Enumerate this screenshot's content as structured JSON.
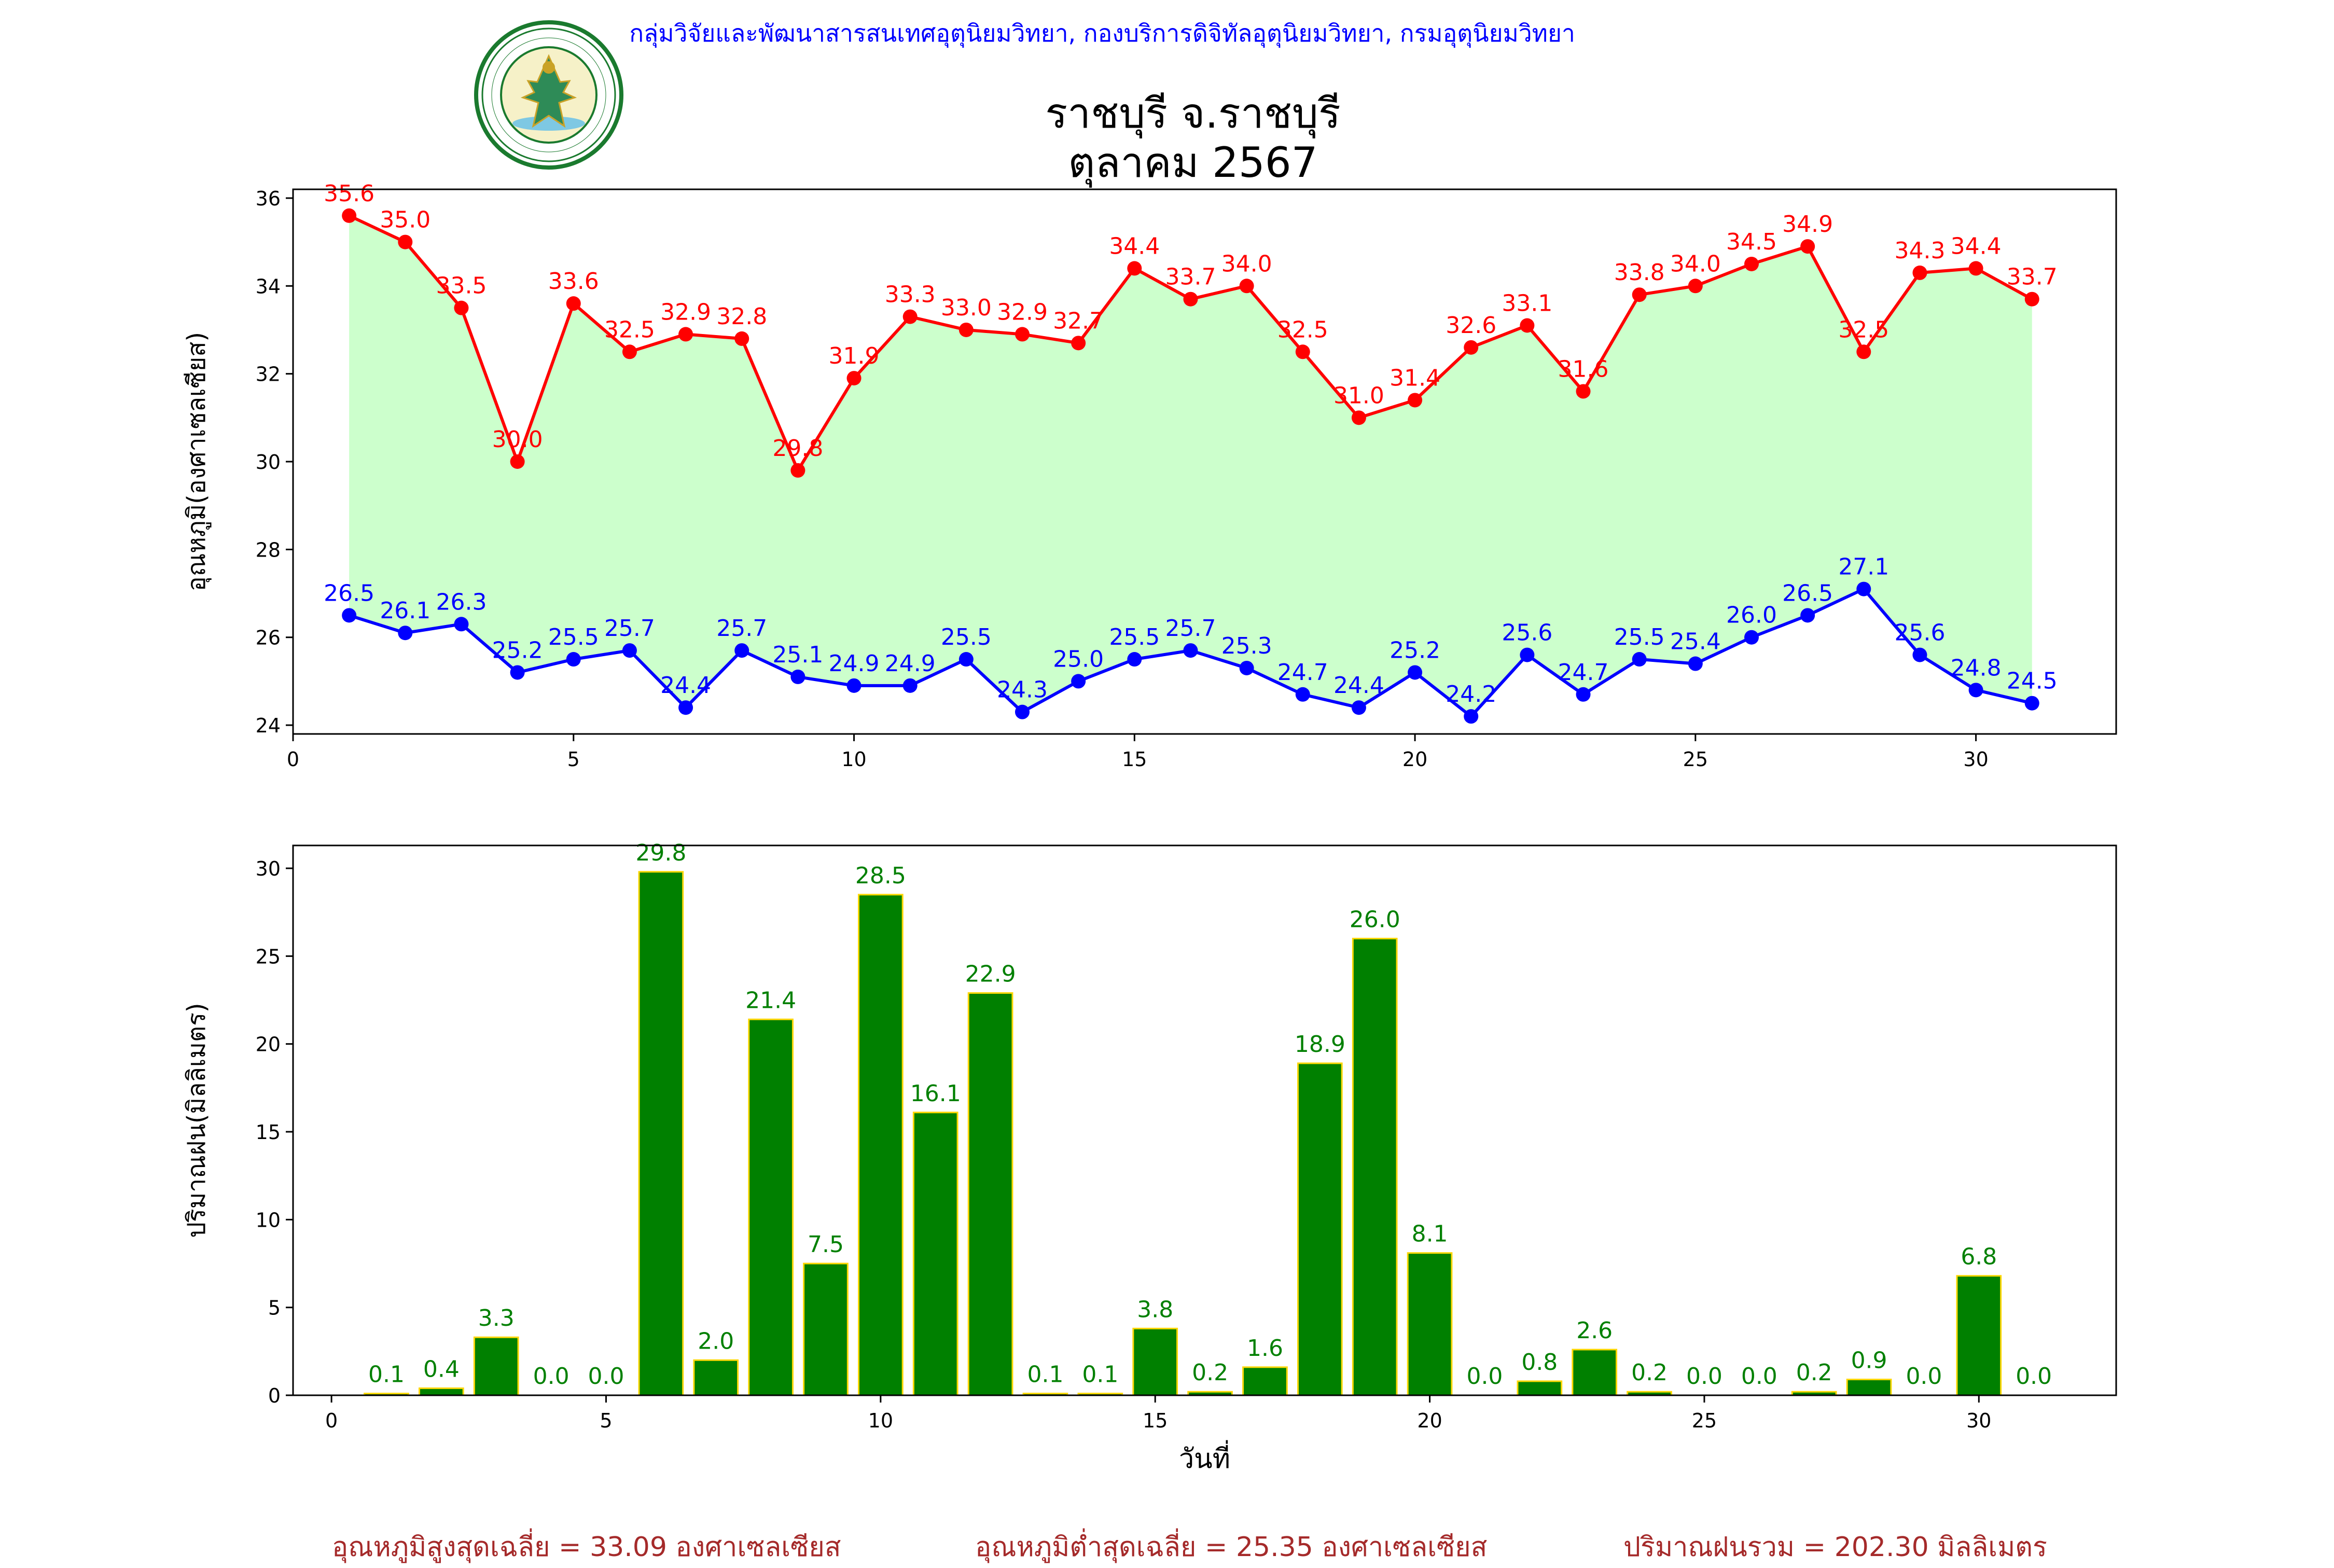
{
  "header": {
    "agency": "กลุ่มวิจัยและพัฒนาสารสนเทศอุตุนิยมวิทยา, กองบริการดิจิทัลอุตุนิยมวิทยา, กรมอุตุนิยมวิทยา",
    "logo_text_top": "กรมอุตุนิยมวิทยา",
    "logo_text_bottom": "METEOROLOGICAL DEPARTMENT",
    "title_line1": "ราชบุรี จ.ราชบุรี",
    "title_line2": "ตุลาคม 2567"
  },
  "chart_data": [
    {
      "type": "line",
      "ylabel": "อุณหภูมิ(องศาเซลเซียส)",
      "xlim": [
        0,
        32.5
      ],
      "ylim": [
        23.8,
        36.2
      ],
      "xticks": [
        0,
        5,
        10,
        15,
        20,
        25,
        30
      ],
      "yticks": [
        24,
        26,
        28,
        30,
        32,
        34,
        36
      ],
      "fill_between": "max-min",
      "x": [
        1,
        2,
        3,
        4,
        5,
        6,
        7,
        8,
        9,
        10,
        11,
        12,
        13,
        14,
        15,
        16,
        17,
        18,
        19,
        20,
        21,
        22,
        23,
        24,
        25,
        26,
        27,
        28,
        29,
        30,
        31
      ],
      "series": [
        {
          "values": [
            35.6,
            35.0,
            33.5,
            30.0,
            33.6,
            32.5,
            32.9,
            32.8,
            29.8,
            31.9,
            33.3,
            33.0,
            32.9,
            32.7,
            34.4,
            33.7,
            34.0,
            32.5,
            31.0,
            31.4,
            32.6,
            33.1,
            31.6,
            33.8,
            34.0,
            34.5,
            34.9,
            32.5,
            34.3,
            34.4,
            33.7
          ]
        },
        {
          "values": [
            26.5,
            26.1,
            26.3,
            25.2,
            25.5,
            25.7,
            24.4,
            25.7,
            25.1,
            24.9,
            24.9,
            25.5,
            24.3,
            25.0,
            25.5,
            25.7,
            25.3,
            24.7,
            24.4,
            25.2,
            24.2,
            25.6,
            24.7,
            25.5,
            25.4,
            26.0,
            26.5,
            27.1,
            25.6,
            24.8,
            24.5
          ]
        }
      ]
    },
    {
      "type": "bar",
      "xlabel": "วันที่",
      "ylabel": "ปริมาณฝน(มิลลิเมตร)",
      "xlim": [
        -0.7,
        32.5
      ],
      "ylim": [
        0,
        31.3
      ],
      "xticks": [
        0,
        5,
        10,
        15,
        20,
        25,
        30
      ],
      "yticks": [
        0,
        5,
        10,
        15,
        20,
        25,
        30
      ],
      "categories": [
        1,
        2,
        3,
        4,
        5,
        6,
        7,
        8,
        9,
        10,
        11,
        12,
        13,
        14,
        15,
        16,
        17,
        18,
        19,
        20,
        21,
        22,
        23,
        24,
        25,
        26,
        27,
        28,
        29,
        30,
        31
      ],
      "values": [
        0.1,
        0.4,
        3.3,
        0.0,
        0.0,
        29.8,
        2.0,
        21.4,
        7.5,
        28.5,
        16.1,
        22.9,
        0.1,
        0.1,
        3.8,
        0.2,
        1.6,
        18.9,
        26.0,
        8.1,
        0.0,
        0.8,
        2.6,
        0.2,
        0.0,
        0.0,
        0.2,
        0.9,
        0.0,
        6.8,
        0.0
      ]
    }
  ],
  "colors": {
    "max_line": "#ff0000",
    "min_line": "#0000ff",
    "fill": "#ccffcc",
    "bar": "#008000",
    "bar_edge": "#ffd700",
    "bar_label": "#008000",
    "agency": "#0000ff",
    "footer": "#a52a2a"
  },
  "footer": {
    "avg_max": "อุณหภูมิสูงสุดเฉลี่ย = 33.09 องศาเซลเซียส",
    "avg_min": "อุณหภูมิต่ำสุดเฉลี่ย = 25.35 องศาเซลเซียส",
    "total_rain": "ปริมาณฝนรวม = 202.30 มิลลิเมตร"
  }
}
